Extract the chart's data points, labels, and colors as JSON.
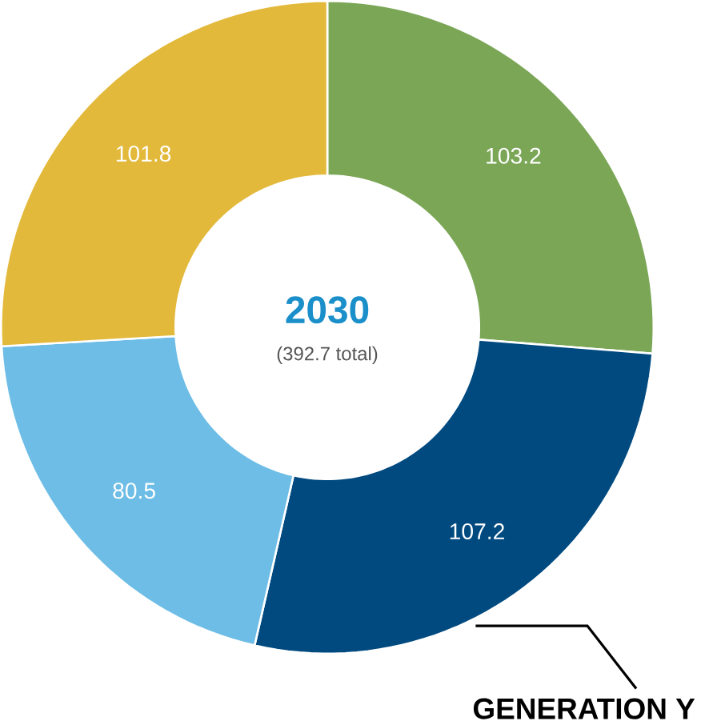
{
  "chart_data": {
    "type": "donut",
    "title": "2030",
    "subtitle": "(392.7 total)",
    "categories": [
      null,
      "GENERATION Y",
      null,
      null
    ],
    "values": [
      103.2,
      107.2,
      80.5,
      101.8
    ],
    "colors": [
      "#7aa656",
      "#004a80",
      "#6dbde6",
      "#e3b93b"
    ],
    "data_labels": true
  }
}
